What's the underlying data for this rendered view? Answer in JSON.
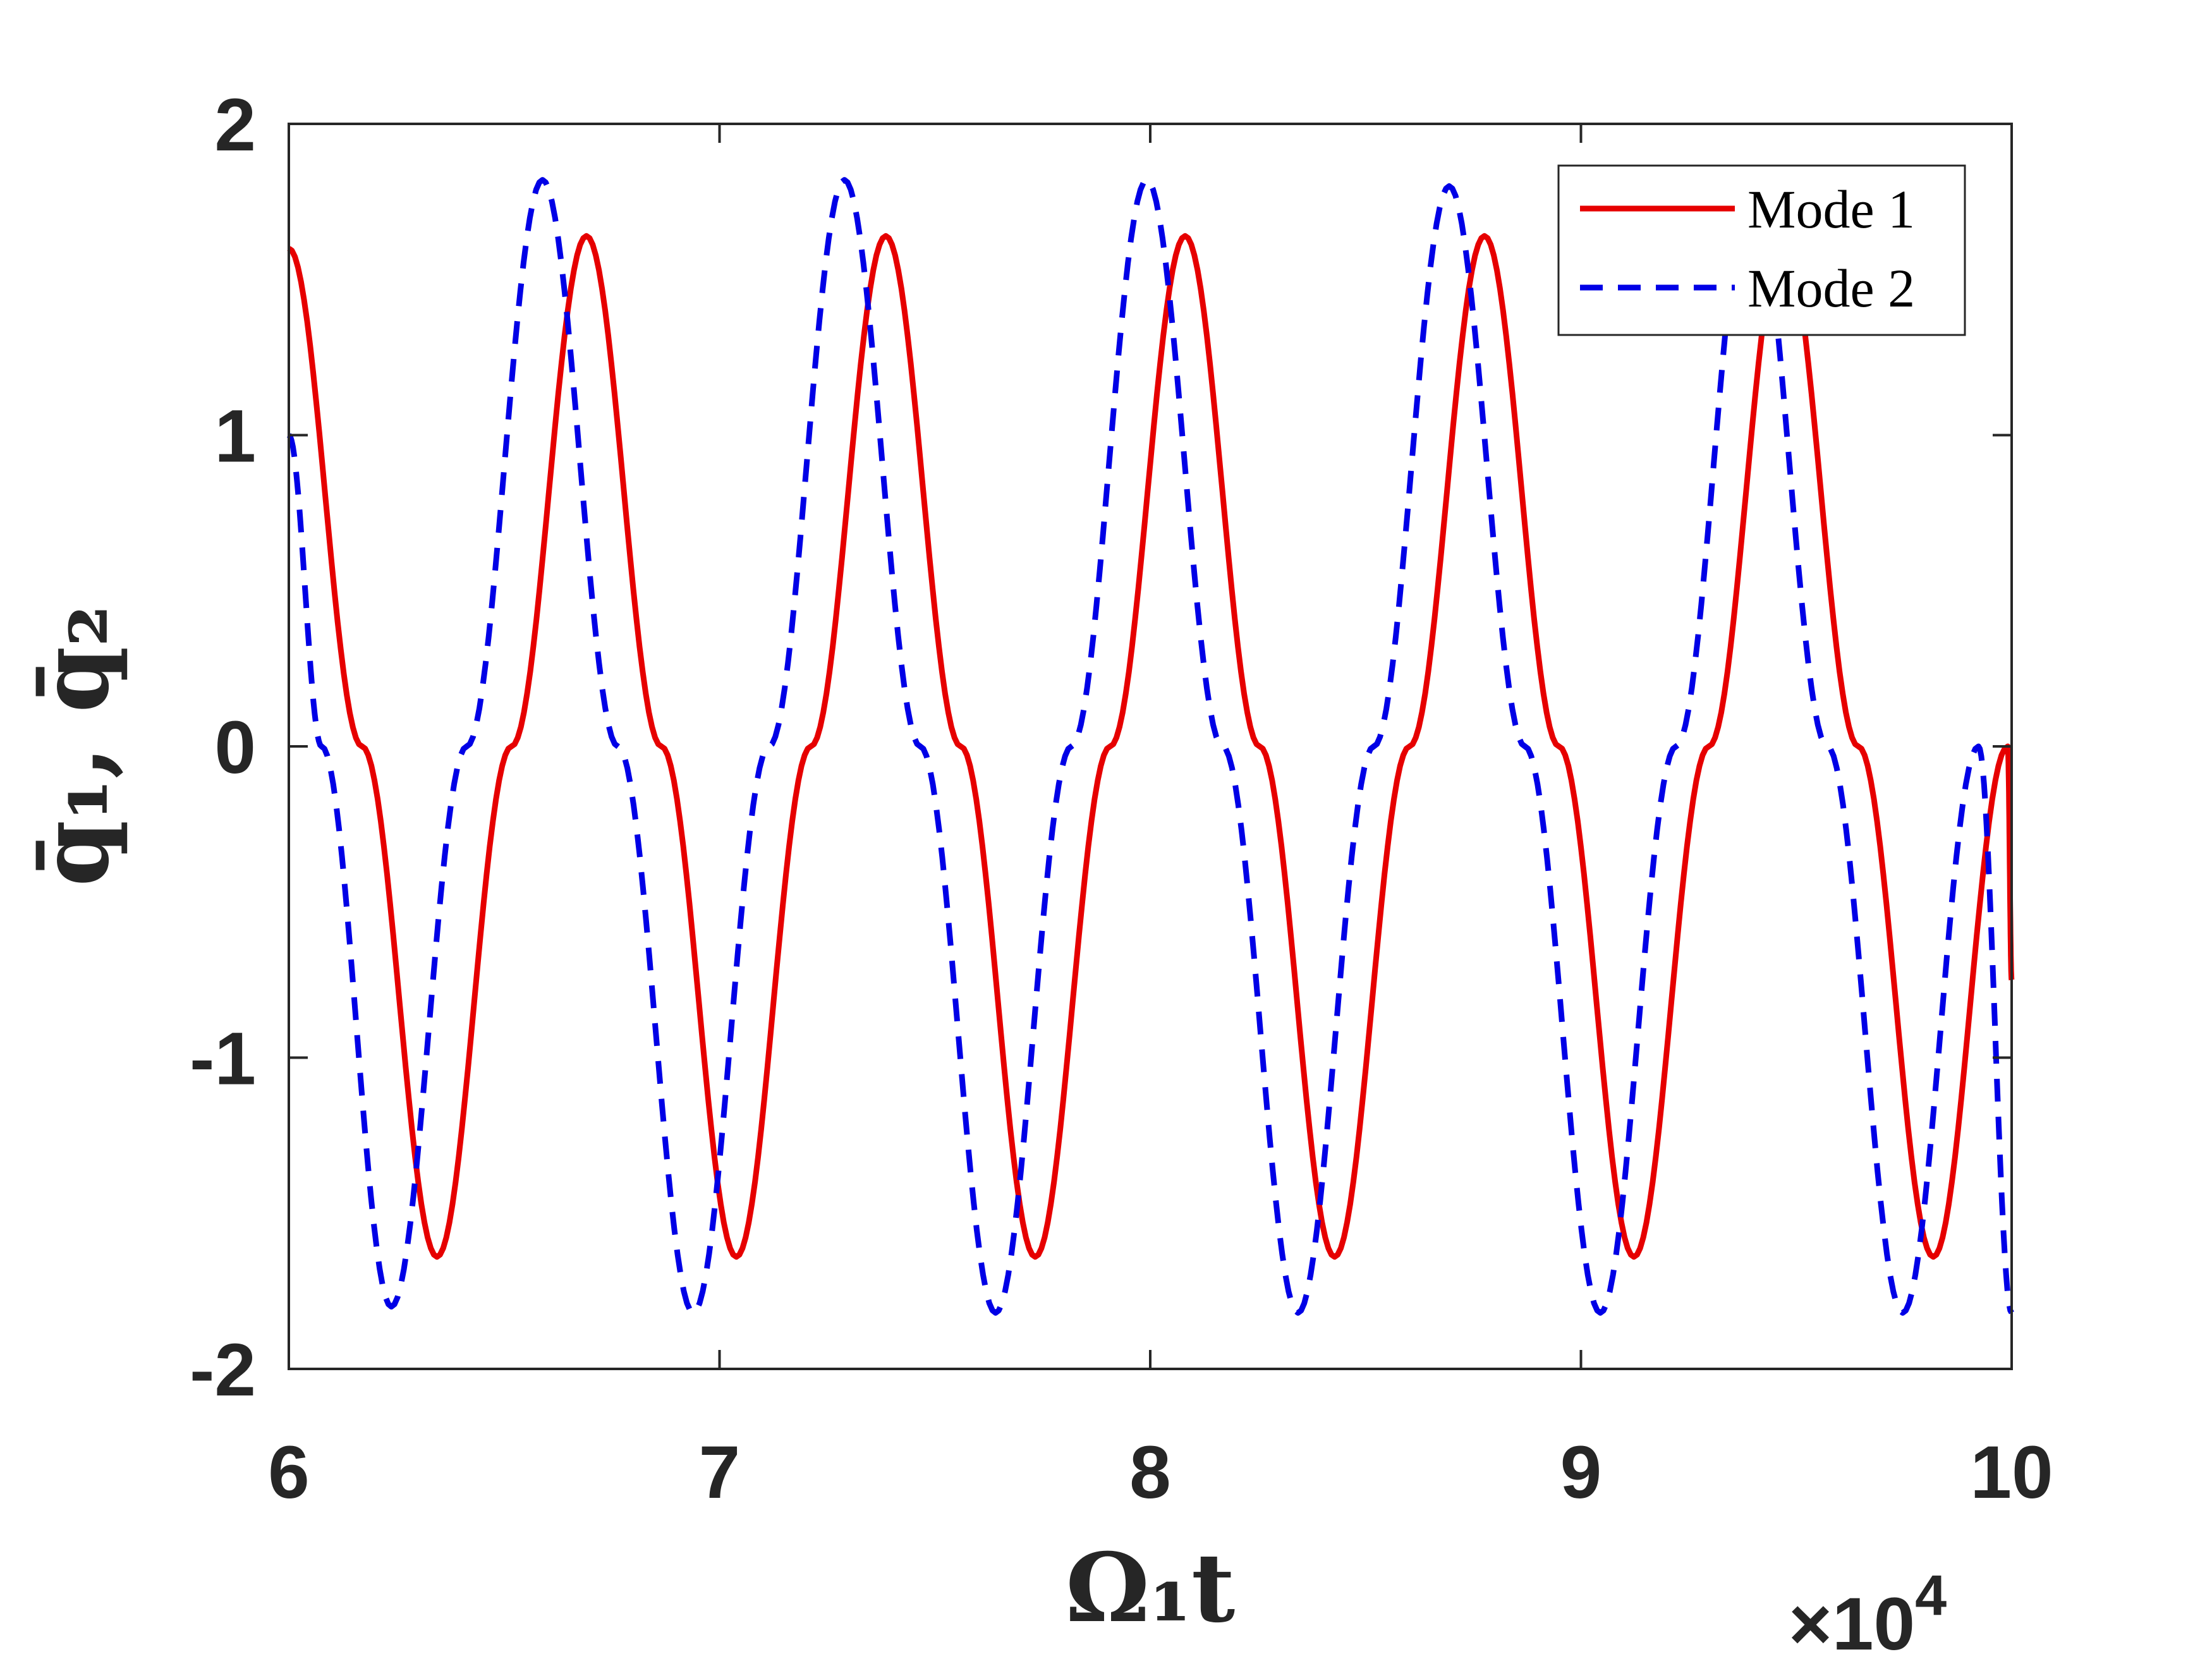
{
  "chart_data": {
    "type": "line",
    "title": "",
    "xlabel": "Ω₁t",
    "ylabel": "q̄₁, q̄₂",
    "x_exponent_label": "×10",
    "x_exponent_power": "4",
    "xlim": [
      60000,
      100000
    ],
    "ylim": [
      -2,
      2
    ],
    "xticks": [
      6,
      7,
      8,
      9,
      10
    ],
    "xtick_labels": [
      "6",
      "7",
      "8",
      "9",
      "10"
    ],
    "yticks": [
      2,
      1,
      0,
      -1,
      -2
    ],
    "ytick_labels": [
      "2",
      "1",
      "0",
      "-1",
      "-2"
    ],
    "grid": false,
    "legend_position": "top-right",
    "colors": {
      "mode1": "#e60000",
      "mode2": "#0000e6",
      "axis": "#262626"
    },
    "series": [
      {
        "name": "Mode 1",
        "style": "solid",
        "color": "#e60000",
        "x": [
          60000,
          61700,
          63440,
          65170,
          66910,
          68650,
          70390,
          72120,
          73860,
          75600,
          77330,
          79070,
          80810,
          82540,
          84280,
          86020,
          87760,
          89490,
          91230,
          92970,
          94700,
          96440,
          98180,
          99910,
          100000
        ],
        "y": [
          1.6,
          0.0,
          -1.64,
          0.0,
          1.64,
          0.0,
          -1.64,
          0.0,
          1.64,
          0.0,
          -1.64,
          0.0,
          1.64,
          0.0,
          -1.64,
          0.0,
          1.64,
          0.0,
          -1.64,
          0.0,
          1.64,
          0.0,
          -1.64,
          0.0,
          -0.75
        ]
      },
      {
        "name": "Mode 2",
        "style": "dashed",
        "color": "#0000e6",
        "x": [
          60000,
          60760,
          62380,
          64130,
          65890,
          67640,
          69390,
          71150,
          72900,
          74660,
          76410,
          78170,
          79920,
          81680,
          83430,
          85190,
          86940,
          88700,
          90450,
          92210,
          93960,
          95720,
          97470,
          99230,
          100000
        ],
        "y": [
          1.0,
          0.0,
          -1.8,
          0.0,
          1.82,
          0.0,
          -1.82,
          0.0,
          1.82,
          0.0,
          -1.82,
          0.0,
          1.82,
          0.0,
          -1.82,
          0.0,
          1.8,
          0.0,
          -1.82,
          0.0,
          1.82,
          0.0,
          -1.82,
          0.0,
          -1.82
        ]
      }
    ]
  }
}
